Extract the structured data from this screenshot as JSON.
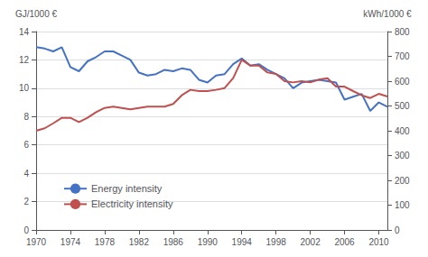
{
  "chart_data": {
    "type": "line",
    "x": [
      1970,
      1971,
      1972,
      1973,
      1974,
      1975,
      1976,
      1977,
      1978,
      1979,
      1980,
      1981,
      1982,
      1983,
      1984,
      1985,
      1986,
      1987,
      1988,
      1989,
      1990,
      1991,
      1992,
      1993,
      1994,
      1995,
      1996,
      1997,
      1998,
      1999,
      2000,
      2001,
      2002,
      2003,
      2004,
      2005,
      2006,
      2007,
      2008,
      2009,
      2010,
      2011
    ],
    "series": [
      {
        "name": "Energy intensity",
        "color": "#4472C4",
        "values": [
          12.9,
          12.8,
          12.6,
          12.9,
          11.5,
          11.2,
          11.9,
          12.2,
          12.6,
          12.6,
          12.3,
          12.0,
          11.1,
          10.9,
          11.0,
          11.3,
          11.2,
          11.4,
          11.3,
          10.6,
          10.4,
          10.9,
          11.0,
          11.7,
          12.1,
          11.6,
          11.7,
          11.3,
          11.0,
          10.7,
          10.0,
          10.4,
          10.5,
          10.6,
          10.5,
          10.4,
          9.2,
          9.4,
          9.6,
          8.4,
          9.0,
          8.7
        ]
      },
      {
        "name": "Electricity intensity",
        "color": "#C0504D",
        "axis": "y2",
        "values": [
          400,
          410,
          430,
          452,
          452,
          435,
          452,
          475,
          492,
          497,
          492,
          486,
          492,
          497,
          497,
          497,
          508,
          543,
          565,
          560,
          560,
          565,
          572,
          612,
          686,
          663,
          663,
          635,
          629,
          600,
          595,
          600,
          595,
          606,
          612,
          578,
          578,
          560,
          543,
          532,
          549,
          538
        ]
      }
    ],
    "ylabel": "GJ/1000 €",
    "y2label": "kWh/1000 €",
    "xlim": [
      1970,
      2011
    ],
    "xticks": [
      1970,
      1974,
      1978,
      1982,
      1986,
      1990,
      1994,
      1998,
      2002,
      2006,
      2010
    ],
    "ylim": [
      0,
      14
    ],
    "yticks": [
      0,
      2,
      4,
      6,
      8,
      10,
      12,
      14
    ],
    "y2lim": [
      0,
      800
    ],
    "y2ticks": [
      0,
      100,
      200,
      300,
      400,
      500,
      600,
      700,
      800
    ],
    "grid": true,
    "legend": "lower left"
  }
}
